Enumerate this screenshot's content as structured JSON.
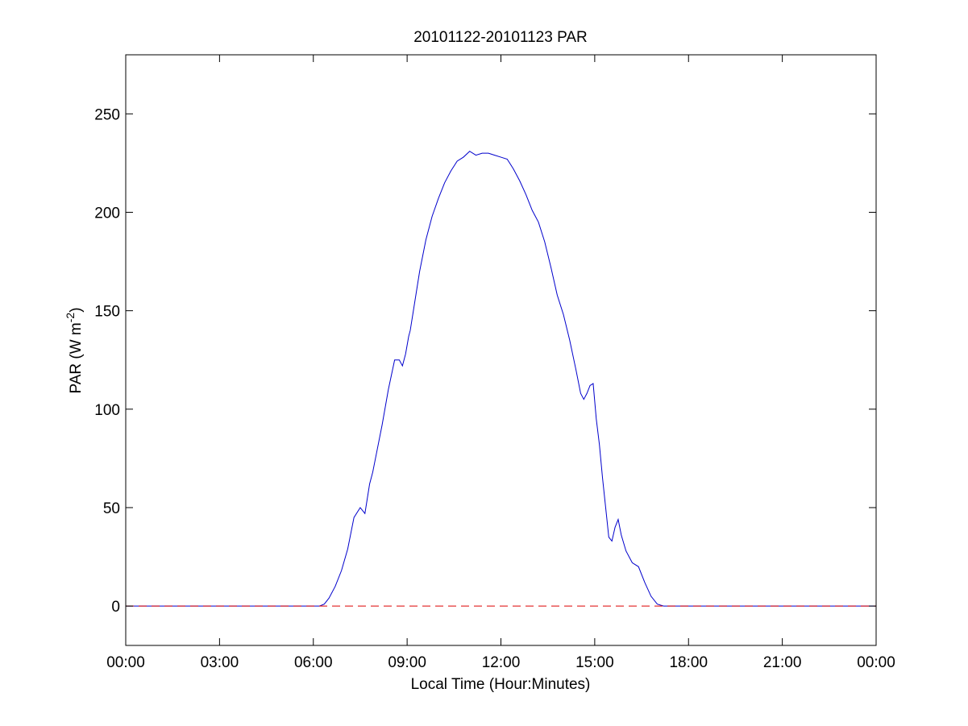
{
  "chart_data": {
    "type": "line",
    "title": "20101122-20101123 PAR",
    "xlabel": "Local Time (Hour:Minutes)",
    "ylabel": {
      "main": "PAR (W m",
      "superscript": "-2",
      "close": ")"
    },
    "xlim": [
      0,
      24
    ],
    "ylim": [
      -20,
      280
    ],
    "x_ticks": [
      {
        "value": 0,
        "label": "00:00"
      },
      {
        "value": 3,
        "label": "03:00"
      },
      {
        "value": 6,
        "label": "06:00"
      },
      {
        "value": 9,
        "label": "09:00"
      },
      {
        "value": 12,
        "label": "12:00"
      },
      {
        "value": 15,
        "label": "15:00"
      },
      {
        "value": 18,
        "label": "18:00"
      },
      {
        "value": 21,
        "label": "21:00"
      },
      {
        "value": 24,
        "label": "00:00"
      }
    ],
    "y_ticks": [
      {
        "value": 0,
        "label": "0"
      },
      {
        "value": 50,
        "label": "50"
      },
      {
        "value": 100,
        "label": "100"
      },
      {
        "value": 150,
        "label": "150"
      },
      {
        "value": 200,
        "label": "200"
      },
      {
        "value": 250,
        "label": "250"
      }
    ],
    "grid": false,
    "legend": "none",
    "series": [
      {
        "color": "#0000cc",
        "style": "solid",
        "x": [
          0,
          6.2,
          6.35,
          6.5,
          6.7,
          6.9,
          7.1,
          7.3,
          7.5,
          7.65,
          7.8,
          7.9,
          7.95,
          8.05,
          8.2,
          8.4,
          8.6,
          8.75,
          8.85,
          8.95,
          9.05,
          9.1,
          9.2,
          9.4,
          9.6,
          9.8,
          10.0,
          10.2,
          10.4,
          10.6,
          10.8,
          11.0,
          11.2,
          11.4,
          11.6,
          11.8,
          12.0,
          12.2,
          12.4,
          12.6,
          12.8,
          13.0,
          13.2,
          13.4,
          13.6,
          13.8,
          14.0,
          14.2,
          14.4,
          14.55,
          14.65,
          14.75,
          14.85,
          14.95,
          15.05,
          15.15,
          15.25,
          15.35,
          15.45,
          15.55,
          15.65,
          15.75,
          15.85,
          16.0,
          16.2,
          16.4,
          16.6,
          16.8,
          17.0,
          17.2,
          17.4,
          24
        ],
        "y": [
          0,
          0,
          1,
          4,
          10,
          18,
          29,
          45,
          50,
          47,
          62,
          68,
          72,
          80,
          92,
          110,
          125,
          125,
          122,
          128,
          137,
          140,
          150,
          170,
          186,
          198,
          207,
          215,
          221,
          226,
          228,
          231,
          229,
          230,
          230,
          229,
          228,
          227,
          222,
          216,
          209,
          201,
          195,
          185,
          172,
          158,
          148,
          135,
          120,
          108,
          105,
          108,
          112,
          113,
          95,
          82,
          65,
          50,
          35,
          33,
          40,
          44,
          36,
          28,
          22,
          20,
          12,
          5,
          1,
          0,
          0,
          0
        ]
      },
      {
        "color": "#dd0000",
        "style": "dashed",
        "x": [
          0,
          24
        ],
        "y": [
          0,
          0
        ]
      }
    ]
  }
}
